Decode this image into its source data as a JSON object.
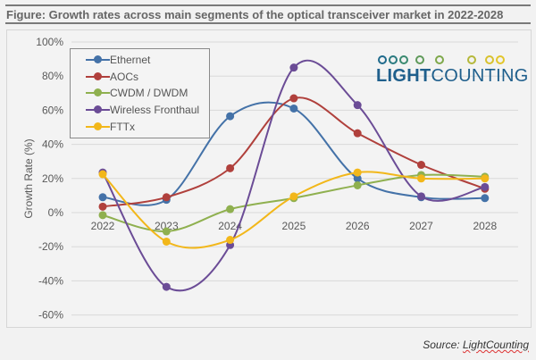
{
  "figure": {
    "title": "Figure: Growth rates across main segments of the optical transceiver market in 2022-2028",
    "source_prefix": "Source: ",
    "source_name": "LightCounting",
    "logo_bold": "LIGHT",
    "logo_regular": "COUNTING"
  },
  "chart_data": {
    "type": "line",
    "title": "Growth rates across main segments of the optical transceiver market in 2022-2028",
    "xlabel": "",
    "ylabel": "Growth Rate (%)",
    "x": [
      "2022",
      "2023",
      "2024",
      "2025",
      "2026",
      "2027",
      "2028"
    ],
    "ylim": [
      -60,
      100
    ],
    "yticks": [
      -60,
      -40,
      -20,
      0,
      20,
      40,
      60,
      80,
      100
    ],
    "ytick_labels": [
      "-60%",
      "-40%",
      "-20%",
      "0%",
      "20%",
      "40%",
      "60%",
      "80%",
      "100%"
    ],
    "grid": true,
    "legend_position": "top-left",
    "smoothed": true,
    "series": [
      {
        "name": "Ethernet",
        "color": "#4472a8",
        "values": [
          9,
          7.5,
          56.5,
          61,
          20,
          9,
          8.5
        ]
      },
      {
        "name": "AOCs",
        "color": "#b0403c",
        "values": [
          3.5,
          9,
          26,
          67,
          46.5,
          28,
          14
        ]
      },
      {
        "name": "CWDM / DWDM",
        "color": "#8fb04f",
        "values": [
          -1.5,
          -11,
          2,
          8.5,
          16,
          22,
          21
        ]
      },
      {
        "name": "Wireless Fronthaul",
        "color": "#6b4c96",
        "values": [
          23.5,
          -43.5,
          -19,
          85,
          63,
          9.5,
          15
        ]
      },
      {
        "name": "FTTx",
        "color": "#f2b71a",
        "values": [
          22.5,
          -17,
          -16,
          9.5,
          23.5,
          20,
          20
        ]
      }
    ]
  }
}
